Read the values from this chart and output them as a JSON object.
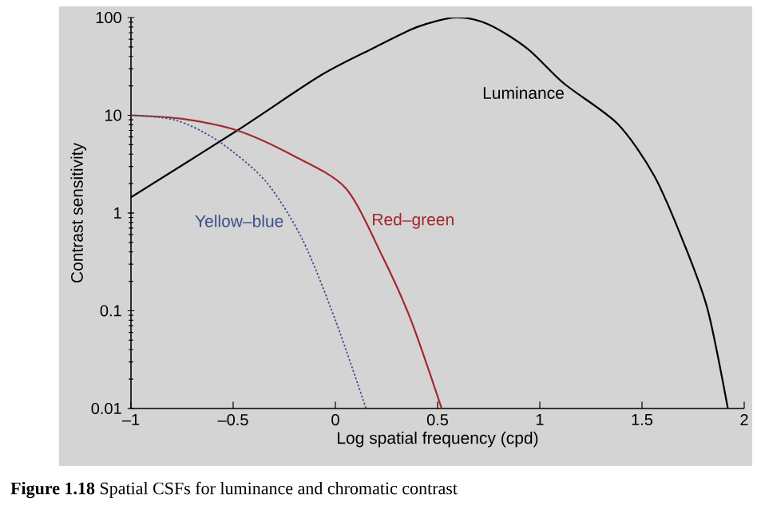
{
  "chart_data": {
    "type": "line",
    "xlabel": "Log spatial frequency (cpd)",
    "ylabel": "Contrast sensitivity",
    "log": "y",
    "xlim": [
      -1,
      2
    ],
    "ylim": [
      0.01,
      100
    ],
    "xticks": [
      {
        "value": -1,
        "label": "–1"
      },
      {
        "value": -0.5,
        "label": "–0.5"
      },
      0,
      0.5,
      1,
      1.5,
      2
    ],
    "yticks": [
      0.01,
      0.1,
      1,
      10,
      100
    ],
    "annotations": [
      "**Figure 1.18** Spatial CSFs for luminance and chromatic contrast"
    ],
    "series": [
      {
        "name": "Luminance",
        "color": "#000000",
        "line_style": "solid",
        "x": [
          -1,
          -0.48,
          -0.08,
          0.18,
          0.4,
          0.59,
          0.75,
          0.94,
          1.12,
          1.38,
          1.56,
          1.7,
          1.82,
          1.92
        ],
        "values": [
          1.45,
          7,
          25,
          48,
          80,
          100,
          85,
          48,
          21,
          8.2,
          2.4,
          0.52,
          0.105,
          0.01
        ]
      },
      {
        "name": "Red–green",
        "color": "#a3282c",
        "line_style": "solid",
        "x": [
          -1,
          -0.75,
          -0.48,
          -0.21,
          0.05,
          0.23,
          0.37,
          0.52
        ],
        "values": [
          10,
          9.2,
          7,
          3.9,
          1.8,
          0.36,
          0.08,
          0.01
        ]
      },
      {
        "name": "Yellow–blue",
        "color": "#3c4f8c",
        "line_style": "dotted",
        "x": [
          -1,
          -0.78,
          -0.57,
          -0.34,
          -0.16,
          0,
          0.15
        ],
        "values": [
          10,
          8.9,
          5.4,
          2.1,
          0.53,
          0.08,
          0.01
        ]
      }
    ]
  }
}
